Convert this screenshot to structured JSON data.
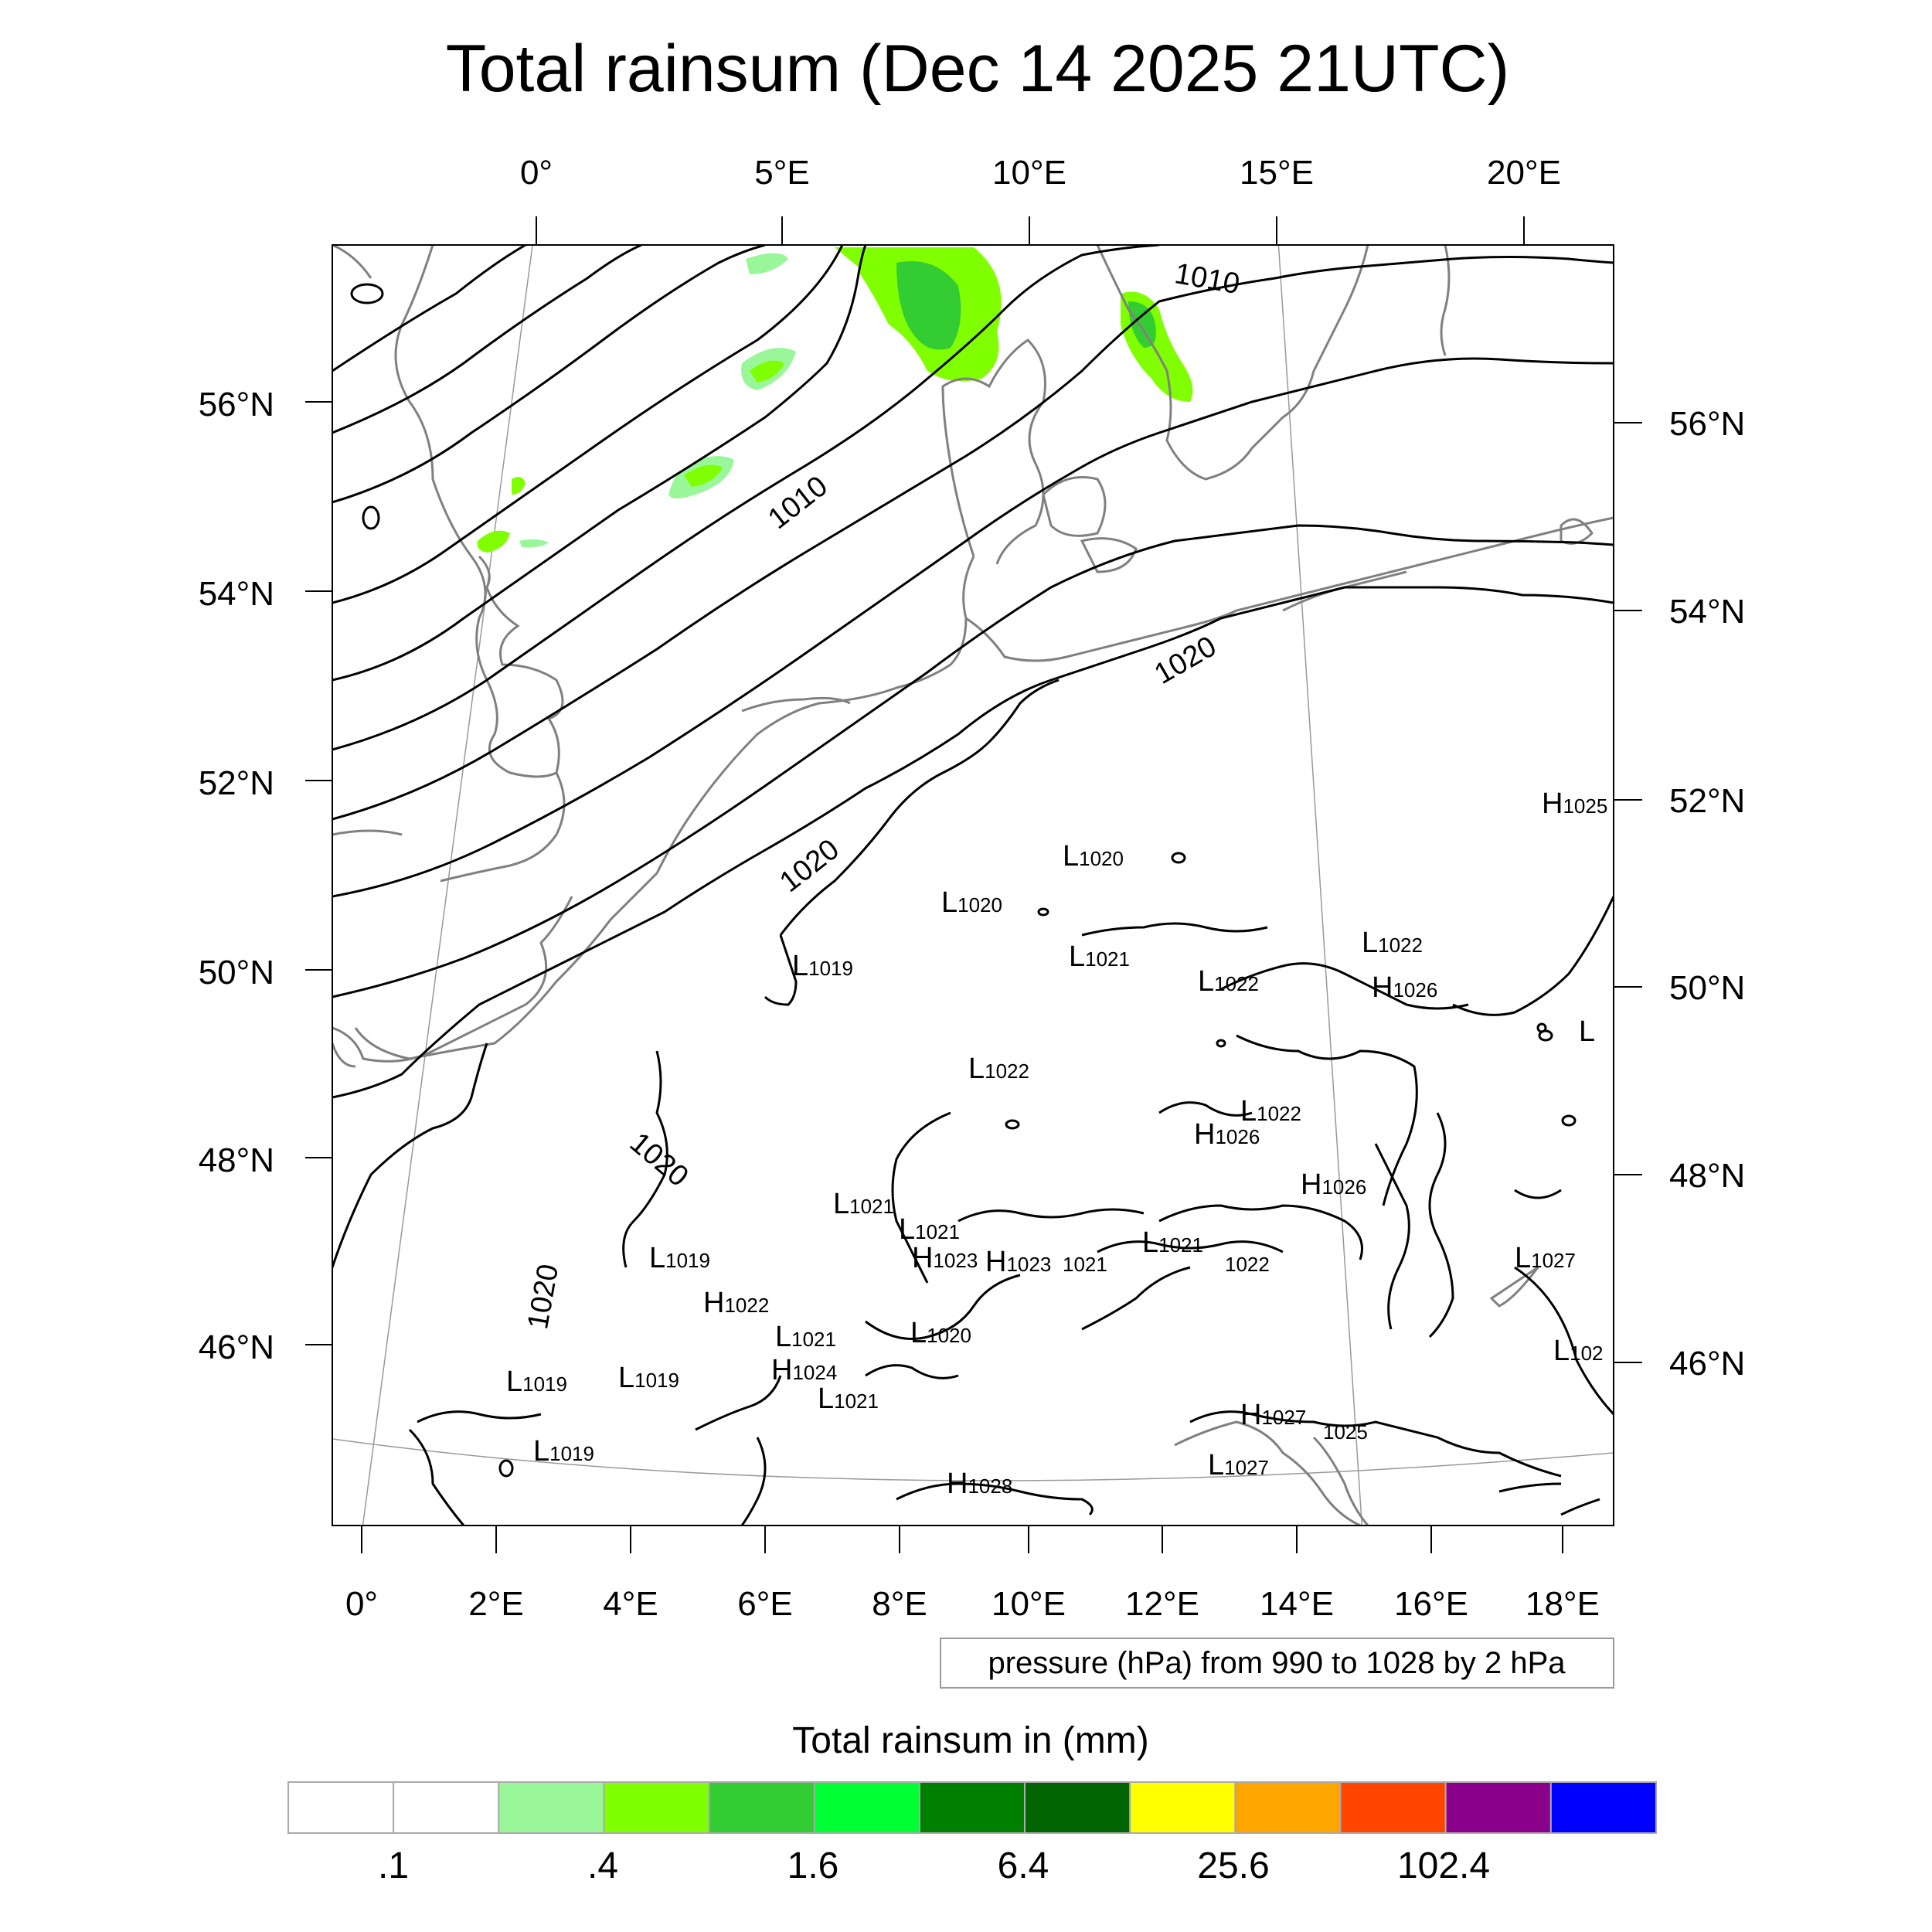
{
  "title": "Total rainsum (Dec 14 2025 21UTC)",
  "top_lon_labels": [
    "0°",
    "5°E",
    "10°E",
    "15°E",
    "20°E"
  ],
  "left_lat_labels": [
    "56°N",
    "54°N",
    "52°N",
    "50°N",
    "48°N",
    "46°N"
  ],
  "right_lat_labels": [
    "56°N",
    "54°N",
    "52°N",
    "50°N",
    "48°N",
    "46°N"
  ],
  "bottom_lon_labels": [
    "0°",
    "2°E",
    "4°E",
    "6°E",
    "8°E",
    "10°E",
    "12°E",
    "14°E",
    "16°E",
    "18°E"
  ],
  "isobar_labels": [
    "1010",
    "1010",
    "1020",
    "1020",
    "1020",
    "1020"
  ],
  "pressure_centers": [
    {
      "letter": "H",
      "value": "1025"
    },
    {
      "letter": "L",
      "value": "1020"
    },
    {
      "letter": "L",
      "value": "1020"
    },
    {
      "letter": "L",
      "value": "1021"
    },
    {
      "letter": "L",
      "value": "1022"
    },
    {
      "letter": "L",
      "value": "1022"
    },
    {
      "letter": "H",
      "value": "1026"
    },
    {
      "letter": "L",
      "value": "1019"
    },
    {
      "letter": "L",
      "value": ""
    },
    {
      "letter": "L",
      "value": "1022"
    },
    {
      "letter": "L",
      "value": "1022"
    },
    {
      "letter": "H",
      "value": "1026"
    },
    {
      "letter": "H",
      "value": "1026"
    },
    {
      "letter": "L",
      "value": "1021"
    },
    {
      "letter": "L",
      "value": "1021"
    },
    {
      "letter": "H",
      "value": "1023"
    },
    {
      "letter": "H",
      "value": "1023"
    },
    {
      "letter": "",
      "value": "1021"
    },
    {
      "letter": "L",
      "value": "1021"
    },
    {
      "letter": "",
      "value": "1022"
    },
    {
      "letter": "L",
      "value": "1019"
    },
    {
      "letter": "H",
      "value": "1022"
    },
    {
      "letter": "L",
      "value": "1027"
    },
    {
      "letter": "L",
      "value": "1021"
    },
    {
      "letter": "L",
      "value": "1020"
    },
    {
      "letter": "H",
      "value": "1024"
    },
    {
      "letter": "L",
      "value": "1019"
    },
    {
      "letter": "L",
      "value": "1019"
    },
    {
      "letter": "L",
      "value": "1021"
    },
    {
      "letter": "L",
      "value": "102"
    },
    {
      "letter": "H",
      "value": "1027"
    },
    {
      "letter": "",
      "value": "1025"
    },
    {
      "letter": "L",
      "value": "1019"
    },
    {
      "letter": "L",
      "value": "1027"
    },
    {
      "letter": "H",
      "value": "1028"
    }
  ],
  "contour_note": "pressure (hPa) from 990 to 1028 by 2 hPa",
  "colorbar": {
    "title": "Total rainsum in (mm)",
    "colors": [
      "#ffffff",
      "#ffffff",
      "#99f799",
      "#80ff00",
      "#33cc33",
      "#00ff33",
      "#008000",
      "#006400",
      "#ffff00",
      "#ffa500",
      "#ff4500",
      "#8b008b",
      "#0000ff"
    ],
    "tick_labels": [
      ".1",
      ".4",
      "1.6",
      "6.4",
      "25.6",
      "102.4"
    ]
  },
  "colors": {
    "coastline": "#808080",
    "isobar": "#000000",
    "graticule": "#999999",
    "frame": "#000000"
  }
}
